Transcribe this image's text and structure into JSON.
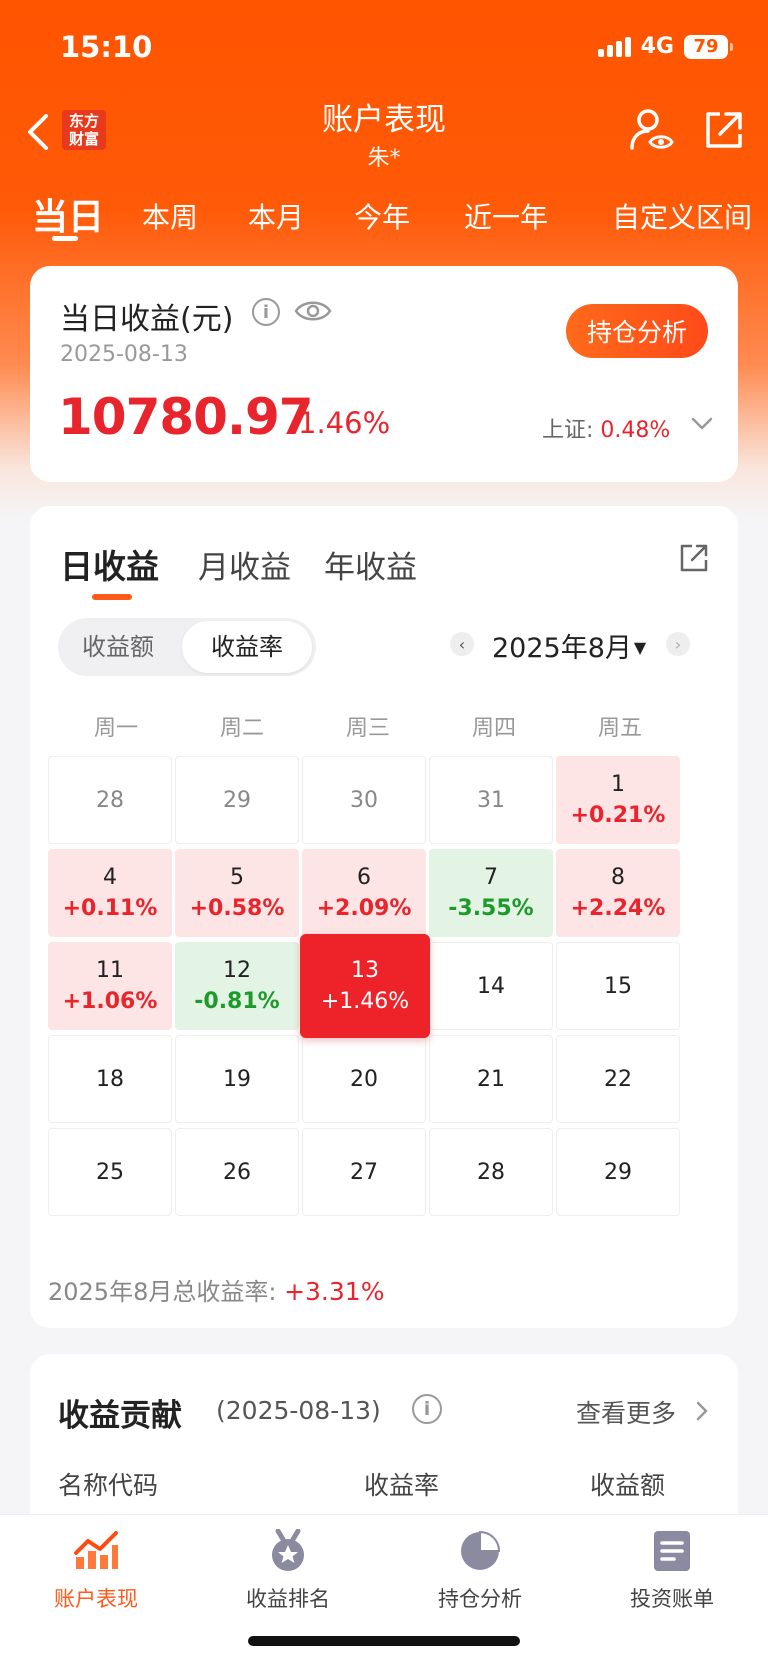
{
  "status": {
    "time": "15:10",
    "network": "4G",
    "battery": "79"
  },
  "nav": {
    "logo_line1": "东方",
    "logo_line2": "财富",
    "title": "账户表现",
    "subtitle": "朱*"
  },
  "period_tabs": [
    "当日",
    "本周",
    "本月",
    "今年",
    "近一年",
    "自定义区间"
  ],
  "summary": {
    "title": "当日收益(元)",
    "date": "2025-08-13",
    "value": "10780.97",
    "percent": "1.46%",
    "index_label": "上证:",
    "index_value": "0.48%",
    "button": "持仓分析"
  },
  "calendar": {
    "tabs": [
      "日收益",
      "月收益",
      "年收益"
    ],
    "segment": [
      "收益额",
      "收益率"
    ],
    "month": "2025年8月",
    "prev": "‹",
    "next": "›",
    "weekdays": [
      "周一",
      "周二",
      "周三",
      "周四",
      "周五"
    ],
    "weeks": [
      [
        {
          "d": "28",
          "t": "other"
        },
        {
          "d": "29",
          "t": "other"
        },
        {
          "d": "30",
          "t": "other"
        },
        {
          "d": "31",
          "t": "other"
        },
        {
          "d": "1",
          "r": "+0.21%",
          "t": "pos"
        }
      ],
      [
        {
          "d": "4",
          "r": "+0.11%",
          "t": "pos"
        },
        {
          "d": "5",
          "r": "+0.58%",
          "t": "pos"
        },
        {
          "d": "6",
          "r": "+2.09%",
          "t": "pos"
        },
        {
          "d": "7",
          "r": "-3.55%",
          "t": "neg"
        },
        {
          "d": "8",
          "r": "+2.24%",
          "t": "pos"
        }
      ],
      [
        {
          "d": "11",
          "r": "+1.06%",
          "t": "pos"
        },
        {
          "d": "12",
          "r": "-0.81%",
          "t": "neg"
        },
        {
          "d": "13",
          "r": "+1.46%",
          "t": "sel"
        },
        {
          "d": "14",
          "t": "none"
        },
        {
          "d": "15",
          "t": "none"
        }
      ],
      [
        {
          "d": "18",
          "t": "none"
        },
        {
          "d": "19",
          "t": "none"
        },
        {
          "d": "20",
          "t": "none"
        },
        {
          "d": "21",
          "t": "none"
        },
        {
          "d": "22",
          "t": "none"
        }
      ],
      [
        {
          "d": "25",
          "t": "none"
        },
        {
          "d": "26",
          "t": "none"
        },
        {
          "d": "27",
          "t": "none"
        },
        {
          "d": "28",
          "t": "none"
        },
        {
          "d": "29",
          "t": "none"
        }
      ]
    ],
    "total_label": "2025年8月总收益率:",
    "total_value": "+3.31%"
  },
  "contribution": {
    "title": "收益贡献",
    "date": "(2025-08-13)",
    "more": "查看更多",
    "headers": [
      "名称代码",
      "收益率",
      "收益额"
    ]
  },
  "bottom_tabs": [
    "账户表现",
    "收益排名",
    "持仓分析",
    "投资账单"
  ],
  "colors": {
    "brand": "#ff5400",
    "up": "#e8242c",
    "down": "#1c9a2a"
  }
}
